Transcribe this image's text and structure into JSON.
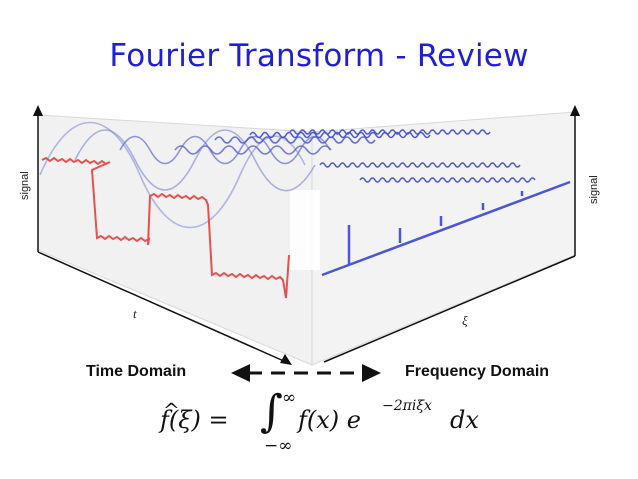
{
  "slide": {
    "title": "Fourier Transform - Review",
    "time_domain_label": "Time Domain",
    "frequency_domain_label": "Frequency Domain",
    "left_axis_label": "signal",
    "right_axis_label": "signal",
    "time_axis_symbol": "t",
    "frequency_axis_symbol": "ξ"
  },
  "formula": {
    "lhs": "f(ξ) = ",
    "hat": "^",
    "integral": "∫",
    "upper_limit": "∞",
    "lower_limit": "−∞",
    "integrand": "f(x) e",
    "exponent": "−2πiξx",
    "differential": "dx"
  },
  "colors": {
    "title": "#1f1fd6",
    "time_signal": "#e8504f",
    "sinusoids": "#6b73d6",
    "spectrum": "#4a58d6"
  }
}
